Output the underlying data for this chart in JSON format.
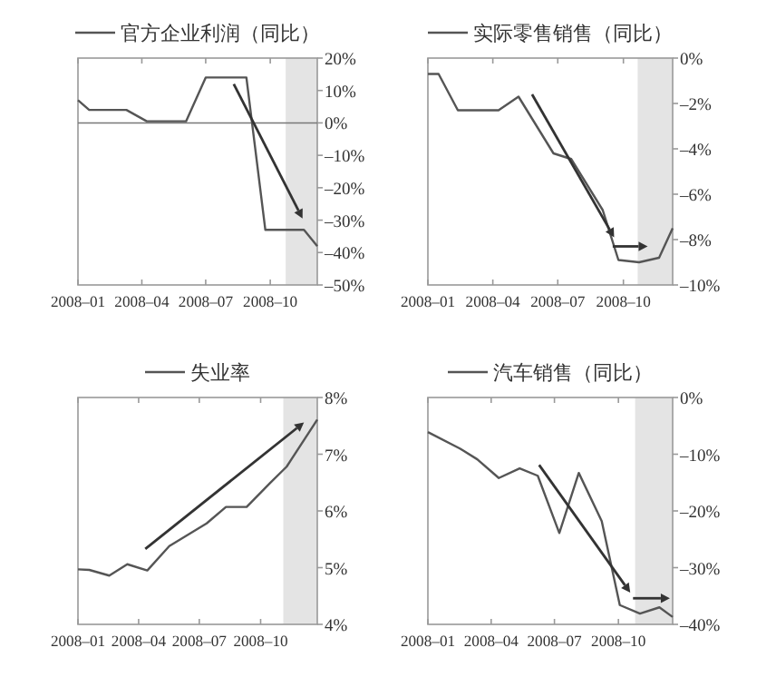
{
  "chart_data": [
    {
      "type": "line",
      "legend": "top",
      "series": [
        {
          "name": "官方企业利润（同比）",
          "color": "#555555",
          "x": [
            "2008-01-01",
            "2008-01-17",
            "2008-03-10",
            "2008-04-08",
            "2008-06-03",
            "2008-07-01",
            "2008-08-28",
            "2008-09-24",
            "2008-11-18",
            "2008-12-07"
          ],
          "values": [
            7,
            4,
            4,
            0.5,
            0.5,
            14,
            14,
            -33,
            -33,
            -38
          ]
        }
      ],
      "xlim": [
        "2008-01-01",
        "2008-12-07"
      ],
      "xticks": [
        {
          "value": "2008-01-01",
          "label": "2008–01"
        },
        {
          "value": "2008-04-01",
          "label": "2008–04"
        },
        {
          "value": "2008-07-01",
          "label": "2008–07"
        },
        {
          "value": "2008-10-01",
          "label": "2008–10"
        }
      ],
      "ylim": [
        -50,
        20
      ],
      "yticks": [
        {
          "value": 20,
          "label": "20%"
        },
        {
          "value": 10,
          "label": "10%"
        },
        {
          "value": 0,
          "label": "0%"
        },
        {
          "value": -10,
          "label": "–10%"
        },
        {
          "value": -20,
          "label": "–20%"
        },
        {
          "value": -30,
          "label": "–30%"
        },
        {
          "value": -40,
          "label": "–40%"
        },
        {
          "value": -50,
          "label": "–50%"
        }
      ],
      "bands": [
        {
          "axis": "x",
          "from": "2008-10-23",
          "to": "2008-12-07",
          "color": "#e4e4e4"
        }
      ],
      "ref_lines": [
        {
          "axis": "y",
          "value": 0,
          "color": "#777777"
        }
      ]
    },
    {
      "type": "line",
      "legend": "top",
      "series": [
        {
          "name": "实际零售销售（同比）",
          "color": "#555555",
          "x": [
            "2008-01-01",
            "2008-01-16",
            "2008-02-12",
            "2008-04-09",
            "2008-05-07",
            "2008-06-25",
            "2008-07-20",
            "2008-09-02",
            "2008-09-24",
            "2008-10-23",
            "2008-11-20",
            "2008-12-09"
          ],
          "values": [
            -0.7,
            -0.7,
            -2.3,
            -2.3,
            -1.7,
            -4.2,
            -4.45,
            -6.7,
            -8.9,
            -9.0,
            -8.8,
            -7.5
          ]
        }
      ],
      "xlim": [
        "2008-01-01",
        "2008-12-09"
      ],
      "xticks": [
        {
          "value": "2008-01-01",
          "label": "2008–01"
        },
        {
          "value": "2008-04-01",
          "label": "2008–04"
        },
        {
          "value": "2008-07-01",
          "label": "2008–07"
        },
        {
          "value": "2008-10-01",
          "label": "2008–10"
        }
      ],
      "ylim": [
        -10,
        0
      ],
      "yticks": [
        {
          "value": 0,
          "label": "0%"
        },
        {
          "value": -2,
          "label": "–2%"
        },
        {
          "value": -4,
          "label": "–4%"
        },
        {
          "value": -6,
          "label": "–6%"
        },
        {
          "value": -8,
          "label": "–8%"
        },
        {
          "value": -10,
          "label": "–10%"
        }
      ],
      "bands": [
        {
          "axis": "x",
          "from": "2008-10-21",
          "to": "2008-12-09",
          "color": "#e4e4e4"
        }
      ]
    },
    {
      "type": "line",
      "legend": "top",
      "series": [
        {
          "name": "失业率",
          "color": "#555555",
          "x": [
            "2008-01-01",
            "2008-01-18",
            "2008-02-17",
            "2008-03-15",
            "2008-04-14",
            "2008-05-17",
            "2008-07-12",
            "2008-08-10",
            "2008-09-10",
            "2008-10-15",
            "2008-11-09",
            "2008-12-25"
          ],
          "values": [
            4.97,
            4.96,
            4.86,
            5.06,
            4.95,
            5.38,
            5.78,
            6.07,
            6.07,
            6.49,
            6.78,
            7.61
          ]
        }
      ],
      "xlim": [
        "2008-01-01",
        "2008-12-25"
      ],
      "xticks": [
        {
          "value": "2008-01-01",
          "label": "2008–01"
        },
        {
          "value": "2008-04-01",
          "label": "2008–04"
        },
        {
          "value": "2008-07-01",
          "label": "2008–07"
        },
        {
          "value": "2008-10-01",
          "label": "2008–10"
        }
      ],
      "ylim": [
        4,
        8
      ],
      "yticks": [
        {
          "value": 8,
          "label": "8%"
        },
        {
          "value": 7,
          "label": "7%"
        },
        {
          "value": 6,
          "label": "6%"
        },
        {
          "value": 5,
          "label": "5%"
        },
        {
          "value": 4,
          "label": "4%"
        }
      ],
      "bands": [
        {
          "axis": "x",
          "from": "2008-11-04",
          "to": "2008-12-25",
          "color": "#e4e4e4"
        }
      ]
    },
    {
      "type": "line",
      "legend": "top",
      "series": [
        {
          "name": "汽车销售（同比）",
          "color": "#555555",
          "x": [
            "2008-01-01",
            "2008-02-16",
            "2008-03-12",
            "2008-04-12",
            "2008-05-12",
            "2008-06-07",
            "2008-07-08",
            "2008-08-05",
            "2008-09-07",
            "2008-10-03",
            "2008-11-01",
            "2008-11-29",
            "2008-12-18"
          ],
          "values": [
            -6.1,
            -9.0,
            -10.9,
            -14.2,
            -12.5,
            -13.8,
            -23.9,
            -13.3,
            -21.8,
            -36.6,
            -38.1,
            -37.0,
            -38.7
          ]
        }
      ],
      "xlim": [
        "2008-01-01",
        "2008-12-18"
      ],
      "xticks": [
        {
          "value": "2008-01-01",
          "label": "2008–01"
        },
        {
          "value": "2008-04-01",
          "label": "2008–04"
        },
        {
          "value": "2008-07-01",
          "label": "2008–07"
        },
        {
          "value": "2008-10-01",
          "label": "2008–10"
        }
      ],
      "ylim": [
        -40,
        0
      ],
      "yticks": [
        {
          "value": 0,
          "label": "0%"
        },
        {
          "value": -10,
          "label": "–10%"
        },
        {
          "value": -20,
          "label": "–20%"
        },
        {
          "value": -30,
          "label": "–30%"
        },
        {
          "value": -40,
          "label": "–40%"
        }
      ],
      "bands": [
        {
          "axis": "x",
          "from": "2008-10-25",
          "to": "2008-12-18",
          "color": "#e4e4e4"
        }
      ]
    }
  ]
}
